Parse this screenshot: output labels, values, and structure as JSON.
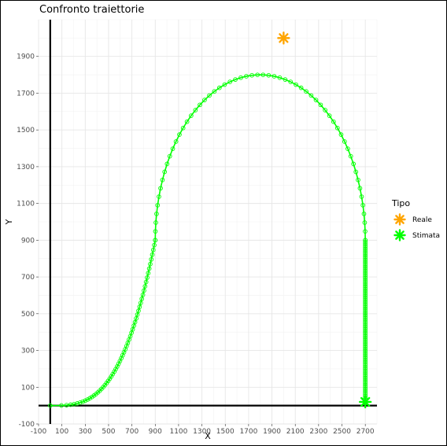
{
  "chart_data": {
    "type": "scatter",
    "title": "Confronto traiettorie",
    "xlabel": "X",
    "ylabel": "Y",
    "xlim": [
      -100,
      2800
    ],
    "ylim": [
      -100,
      2100
    ],
    "x_ticks": [
      -100,
      100,
      300,
      500,
      700,
      900,
      1100,
      1300,
      1500,
      1700,
      1900,
      2100,
      2300,
      2500,
      2700
    ],
    "y_ticks": [
      -100,
      100,
      300,
      500,
      700,
      900,
      1100,
      1300,
      1500,
      1700,
      1900
    ],
    "grid": true,
    "reference_lines": {
      "x": 0,
      "y": 0
    },
    "legend": {
      "title": "Tipo",
      "position": "right",
      "entries": [
        {
          "label": "Reale",
          "color": "#FFA500",
          "marker": "asterisk"
        },
        {
          "label": "Stimata",
          "color": "#00FF00",
          "marker": "asterisk"
        }
      ]
    },
    "series": [
      {
        "name": "Reale",
        "color": "#FFA500",
        "marker": "asterisk",
        "points": [
          [
            2000,
            2000
          ]
        ]
      },
      {
        "name": "Stimata",
        "color": "#00FF00",
        "marker": "circle-line",
        "end_marker": [
          2700,
          20
        ],
        "segments": [
          {
            "kind": "sigmoid",
            "x_start": 0,
            "x_end": 900,
            "y_start": 0,
            "y_end": 900,
            "points": 60
          },
          {
            "kind": "arc",
            "center_x": 1800,
            "center_y": 900,
            "radius_x": 900,
            "radius_y": 900,
            "points": 60
          },
          {
            "kind": "vertical",
            "x": 2700,
            "y_start": 900,
            "y_end": 20,
            "points": 90
          }
        ]
      }
    ]
  }
}
